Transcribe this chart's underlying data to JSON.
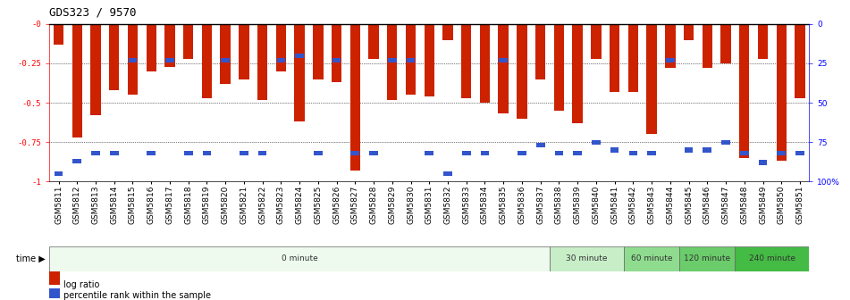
{
  "title": "GDS323 / 9570",
  "categories": [
    "GSM5811",
    "GSM5812",
    "GSM5813",
    "GSM5814",
    "GSM5815",
    "GSM5816",
    "GSM5817",
    "GSM5818",
    "GSM5819",
    "GSM5820",
    "GSM5821",
    "GSM5822",
    "GSM5823",
    "GSM5824",
    "GSM5825",
    "GSM5826",
    "GSM5827",
    "GSM5828",
    "GSM5829",
    "GSM5830",
    "GSM5831",
    "GSM5832",
    "GSM5833",
    "GSM5834",
    "GSM5835",
    "GSM5836",
    "GSM5837",
    "GSM5838",
    "GSM5839",
    "GSM5840",
    "GSM5841",
    "GSM5842",
    "GSM5843",
    "GSM5844",
    "GSM5845",
    "GSM5846",
    "GSM5847",
    "GSM5848",
    "GSM5849",
    "GSM5850",
    "GSM5851"
  ],
  "log_ratio": [
    -0.13,
    -0.72,
    -0.58,
    -0.42,
    -0.45,
    -0.3,
    -0.27,
    -0.22,
    -0.47,
    -0.38,
    -0.35,
    -0.48,
    -0.3,
    -0.62,
    -0.35,
    -0.37,
    -0.93,
    -0.22,
    -0.48,
    -0.45,
    -0.46,
    -0.1,
    -0.47,
    -0.5,
    -0.57,
    -0.6,
    -0.35,
    -0.55,
    -0.63,
    -0.22,
    -0.43,
    -0.43,
    -0.7,
    -0.28,
    -0.1,
    -0.28,
    -0.25,
    -0.85,
    -0.22,
    -0.87,
    -0.47
  ],
  "percentile_rank": [
    0.05,
    0.13,
    0.18,
    0.18,
    0.77,
    0.18,
    0.77,
    0.18,
    0.18,
    0.77,
    0.18,
    0.18,
    0.77,
    0.8,
    0.18,
    0.77,
    0.18,
    0.18,
    0.77,
    0.77,
    0.18,
    0.05,
    0.18,
    0.18,
    0.77,
    0.18,
    0.23,
    0.18,
    0.18,
    0.25,
    0.2,
    0.18,
    0.18,
    0.77,
    0.2,
    0.2,
    0.25,
    0.18,
    0.12,
    0.18,
    0.18
  ],
  "time_groups": [
    {
      "label": "0 minute",
      "start": 0,
      "end": 27,
      "color": "#edfaed"
    },
    {
      "label": "30 minute",
      "start": 27,
      "end": 31,
      "color": "#c8eec8"
    },
    {
      "label": "60 minute",
      "start": 31,
      "end": 34,
      "color": "#8fdc8f"
    },
    {
      "label": "120 minute",
      "start": 34,
      "end": 37,
      "color": "#6acc6a"
    },
    {
      "label": "240 minute",
      "start": 37,
      "end": 41,
      "color": "#44bb44"
    }
  ],
  "bar_color": "#cc2200",
  "percentile_color": "#3355cc",
  "bg_color": "#ffffff",
  "plot_bg": "#ffffff",
  "yticks_left": [
    0.0,
    -0.25,
    -0.5,
    -0.75,
    -1.0
  ],
  "ytick_labels_left": [
    "-0",
    "-0.25",
    "-0.5",
    "-0.75",
    "-1"
  ],
  "ytick_labels_right": [
    "100%",
    "75",
    "50",
    "25",
    "0"
  ],
  "title_fontsize": 9,
  "tick_fontsize": 6.5,
  "bar_width": 0.55
}
